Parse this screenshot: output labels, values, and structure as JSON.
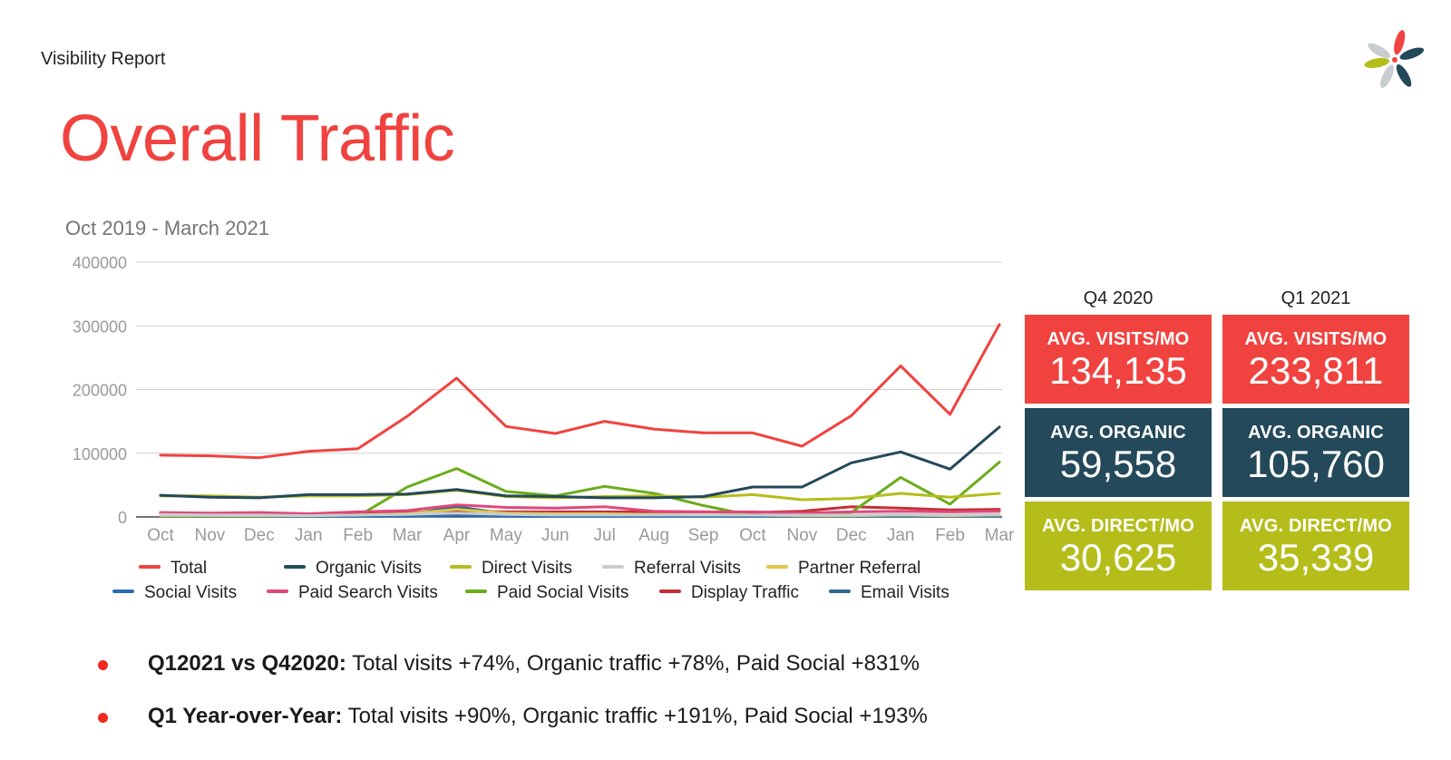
{
  "header": {
    "report_label": "Visibility Report",
    "title": "Overall Traffic"
  },
  "logo": {
    "icon": "flower-logo-icon",
    "petal_colors": [
      "#f0433f",
      "#23495a",
      "#b5bd1b",
      "#c8cdd0"
    ]
  },
  "colors": {
    "red": "#f0433f",
    "navy": "#23495a",
    "green": "#b5bd1b"
  },
  "chart_data": {
    "type": "line",
    "title": "Oct 2019 - March 2021",
    "categories": [
      "Oct",
      "Nov",
      "Dec",
      "Jan",
      "Feb",
      "Mar",
      "Apr",
      "May",
      "Jun",
      "Jul",
      "Aug",
      "Sep",
      "Oct",
      "Nov",
      "Dec",
      "Jan",
      "Feb",
      "Mar"
    ],
    "ylim": [
      0,
      400000
    ],
    "yticks": [
      "0",
      "100000",
      "200000",
      "300000",
      "400000"
    ],
    "grid": true,
    "legend_position": "bottom",
    "series": [
      {
        "name": "Total",
        "color": "#f0433f",
        "values": [
          97000,
          96000,
          93000,
          103000,
          107000,
          158000,
          218000,
          142000,
          131000,
          150000,
          138000,
          132000,
          132000,
          111000,
          159000,
          237000,
          161000,
          302000
        ]
      },
      {
        "name": "Organic Visits",
        "color": "#23495a",
        "values": [
          34000,
          31000,
          30000,
          35000,
          35000,
          36000,
          43000,
          33000,
          32000,
          30000,
          30000,
          32000,
          47000,
          47000,
          85000,
          102000,
          75000,
          141000
        ]
      },
      {
        "name": "Direct Visits",
        "color": "#b5bd1b",
        "values": [
          33000,
          33000,
          31000,
          33000,
          33000,
          35000,
          42000,
          32000,
          30000,
          32000,
          33000,
          31000,
          35000,
          27000,
          29000,
          37000,
          31000,
          37000
        ]
      },
      {
        "name": "Referral Visits",
        "color": "#c8cdd0",
        "values": [
          4000,
          3000,
          3000,
          2000,
          3000,
          4000,
          6000,
          4000,
          3000,
          3000,
          3000,
          3000,
          3000,
          3000,
          3000,
          4000,
          3000,
          4000
        ]
      },
      {
        "name": "Partner Referral",
        "color": "#dcc84a",
        "values": [
          2000,
          2000,
          2000,
          2000,
          3000,
          5000,
          12000,
          6000,
          5000,
          5000,
          4000,
          3000,
          3000,
          2000,
          2000,
          3000,
          2000,
          3000
        ]
      },
      {
        "name": "Social Visits",
        "color": "#2a6cb3",
        "values": [
          1000,
          1000,
          1000,
          1000,
          1000,
          1000,
          2000,
          1000,
          1000,
          1000,
          1000,
          1000,
          1000,
          1000,
          1000,
          1000,
          1000,
          1000
        ]
      },
      {
        "name": "Paid Search Visits",
        "color": "#e0487a",
        "values": [
          7000,
          6000,
          7000,
          5000,
          8000,
          10000,
          19000,
          15000,
          14000,
          16000,
          9000,
          8000,
          8000,
          6000,
          8000,
          9000,
          8000,
          9000
        ]
      },
      {
        "name": "Paid Social Visits",
        "color": "#6aad1a",
        "values": [
          1000,
          1000,
          1000,
          1000,
          1000,
          47000,
          76000,
          40000,
          33000,
          48000,
          37000,
          18000,
          2000,
          3000,
          7000,
          62000,
          20000,
          86000
        ]
      },
      {
        "name": "Display Traffic",
        "color": "#c62f36",
        "values": [
          5000,
          5000,
          5000,
          4000,
          6000,
          7000,
          9000,
          8000,
          8000,
          8000,
          8000,
          8000,
          7000,
          9000,
          16000,
          14000,
          11000,
          12000
        ]
      },
      {
        "name": "Email Visits",
        "color": "#2e6893",
        "values": [
          2000,
          2000,
          2000,
          2000,
          3000,
          4000,
          16000,
          5000,
          3000,
          3000,
          2000,
          2000,
          2000,
          2000,
          2000,
          2000,
          2000,
          2000
        ]
      }
    ]
  },
  "kpi": {
    "columns": [
      {
        "heading": "Q4 2020",
        "visits": {
          "label": "AVG. VISITS/MO",
          "value": "134,135"
        },
        "organic": {
          "label": "AVG. ORGANIC",
          "value": "59,558"
        },
        "direct": {
          "label": "AVG. DIRECT/MO",
          "value": "30,625"
        }
      },
      {
        "heading": "Q1 2021",
        "visits": {
          "label": "AVG. VISITS/MO",
          "value": "233,811"
        },
        "organic": {
          "label": "AVG. ORGANIC",
          "value": "105,760"
        },
        "direct": {
          "label": "AVG. DIRECT/MO",
          "value": "35,339"
        }
      }
    ]
  },
  "bullets": [
    {
      "strong": "Q12021 vs Q42020:",
      "text": " Total visits +74%, Organic traffic +78%, Paid Social +831%"
    },
    {
      "strong": "Q1 Year-over-Year:",
      "text": " Total visits +90%, Organic traffic +191%, Paid Social +193%"
    }
  ]
}
